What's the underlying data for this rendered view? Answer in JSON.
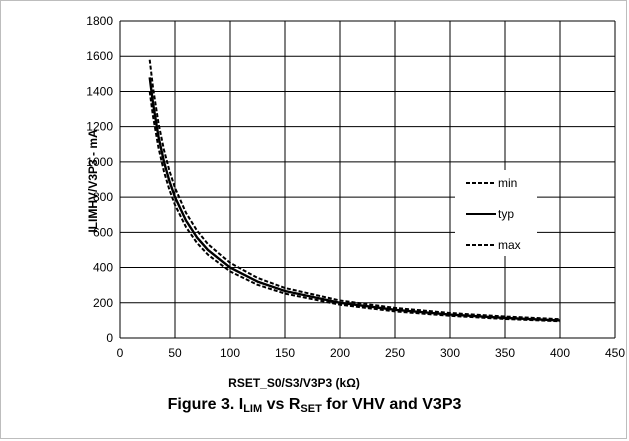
{
  "chart_data": {
    "type": "line",
    "xlabel": "RSET_S0/S3/V3P3 (kΩ)",
    "ylabel": "ILIMHV/V3P3 - mA",
    "xlim": [
      0,
      450
    ],
    "ylim": [
      0,
      1800
    ],
    "x_ticks": [
      "0",
      "50",
      "100",
      "150",
      "200",
      "250",
      "300",
      "350",
      "400",
      "450"
    ],
    "y_ticks": [
      "0",
      "200",
      "400",
      "600",
      "800",
      "1000",
      "1200",
      "1400",
      "1600",
      "1800"
    ],
    "grid": true,
    "legend_position": "right",
    "series": [
      {
        "name": "min",
        "style": "dashed",
        "x": [
          27,
          30,
          35,
          40,
          45,
          50,
          60,
          70,
          80,
          100,
          125,
          150,
          200,
          250,
          300,
          350,
          400
        ],
        "y": [
          1400,
          1260,
          1080,
          945,
          840,
          756,
          630,
          540,
          473,
          378,
          302,
          252,
          189,
          151,
          126,
          108,
          95
        ]
      },
      {
        "name": "typ",
        "style": "solid",
        "x": [
          27,
          30,
          35,
          40,
          45,
          50,
          60,
          70,
          80,
          100,
          125,
          150,
          200,
          250,
          300,
          350,
          400
        ],
        "y": [
          1480,
          1333,
          1143,
          1000,
          889,
          800,
          667,
          571,
          500,
          400,
          320,
          267,
          200,
          160,
          133,
          114,
          100
        ]
      },
      {
        "name": "max",
        "style": "dashed",
        "x": [
          27,
          30,
          35,
          40,
          45,
          50,
          60,
          70,
          80,
          100,
          125,
          150,
          200,
          250,
          300,
          350,
          400
        ],
        "y": [
          1580,
          1422,
          1219,
          1067,
          948,
          853,
          711,
          610,
          533,
          427,
          341,
          284,
          213,
          171,
          142,
          122,
          107
        ]
      }
    ]
  },
  "caption": {
    "prefix": "Figure 3. I",
    "sub1": "LIM",
    "middle": " vs R",
    "sub2": "SET",
    "suffix": " for VHV and V3P3"
  }
}
